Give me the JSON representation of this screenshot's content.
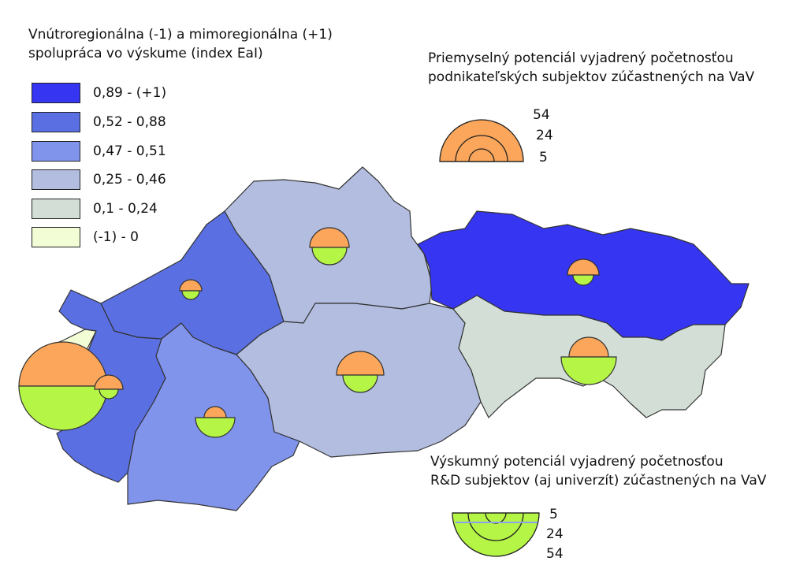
{
  "legend": {
    "title_line1": "Vnútroregionálna  (-1) a mimoregionálna (+1)",
    "title_line2": "spolupráca vo výskume (index EaI)",
    "classes": [
      {
        "label": "0,89 - (+1)",
        "color": "#3535f2"
      },
      {
        "label": "0,52 - 0,88",
        "color": "#5a6fe2"
      },
      {
        "label": "0,47 - 0,51",
        "color": "#8194ec"
      },
      {
        "label": "0,25 - 0,46",
        "color": "#b2bde0"
      },
      {
        "label": "0,1 - 0,24",
        "color": "#d3dfd6"
      },
      {
        "label": "(-1) - 0",
        "color": "#f2fdd6"
      }
    ]
  },
  "industry_legend": {
    "title_line1": "Priemyselný potenciál vyjadrený početnosťou",
    "title_line2": "podnikateľských subjektov zúčastnených na VaV",
    "values": [
      "54",
      "24",
      "5"
    ],
    "color": "#fba65a"
  },
  "research_legend": {
    "title_line1": "Výskumný potenciál vyjadrený početnosťou",
    "title_line2": "R&D subjektov (aj univerzít) zúčastnených na VaV",
    "values": [
      "5",
      "24",
      "54"
    ],
    "color": "#b5f545"
  },
  "regions": [
    {
      "id": "bratislava",
      "class_index": 5
    },
    {
      "id": "trnava",
      "class_index": 1
    },
    {
      "id": "trencin",
      "class_index": 1
    },
    {
      "id": "nitra",
      "class_index": 2
    },
    {
      "id": "zilina",
      "class_index": 3
    },
    {
      "id": "banska-bystrica",
      "class_index": 3
    },
    {
      "id": "presov",
      "class_index": 0
    },
    {
      "id": "kosice",
      "class_index": 4
    }
  ]
}
